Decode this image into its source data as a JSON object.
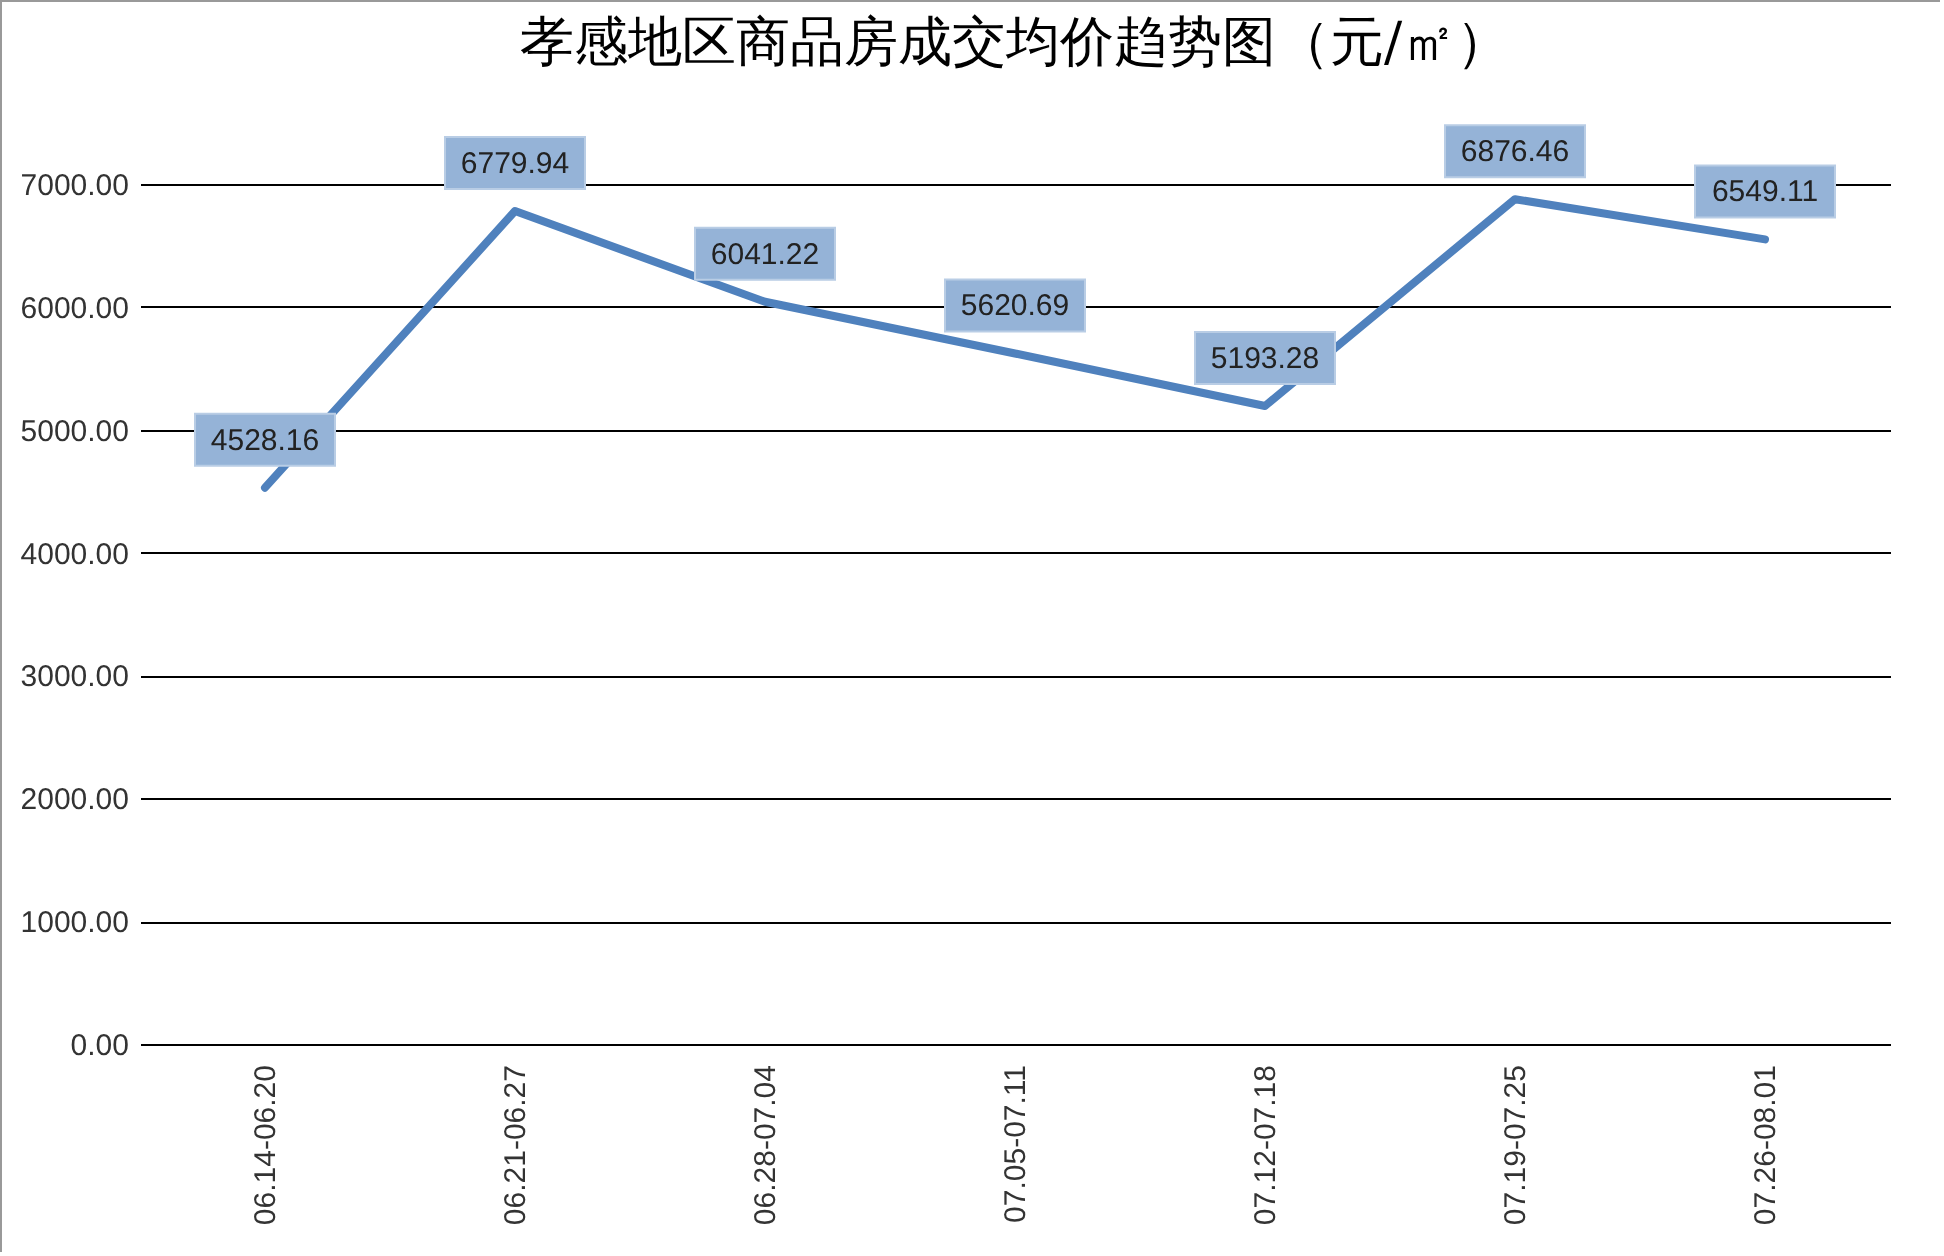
{
  "chart_data": {
    "type": "line",
    "title": "孝感地区商品房成交均价趋势图（元/㎡）",
    "categories": [
      "06.14-06.20",
      "06.21-06.27",
      "06.28-07.04",
      "07.05-07.11",
      "07.12-07.18",
      "07.19-07.25",
      "07.26-08.01"
    ],
    "series": [
      {
        "color": "#4f81bd",
        "values": [
          4528.16,
          6779.94,
          6041.22,
          5620.69,
          5193.28,
          6876.46,
          6549.11
        ]
      }
    ],
    "ylim": [
      0,
      7000
    ],
    "yticks": [
      {
        "value": 0,
        "label": "0.00"
      },
      {
        "value": 1000,
        "label": "1000.00"
      },
      {
        "value": 2000,
        "label": "2000.00"
      },
      {
        "value": 3000,
        "label": "3000.00"
      },
      {
        "value": 4000,
        "label": "4000.00"
      },
      {
        "value": 5000,
        "label": "5000.00"
      },
      {
        "value": 6000,
        "label": "6000.00"
      },
      {
        "value": 7000,
        "label": "7000.00"
      }
    ],
    "grid": "y",
    "data_labels": true,
    "marker": "none",
    "line_style": "solid",
    "legend": false
  }
}
